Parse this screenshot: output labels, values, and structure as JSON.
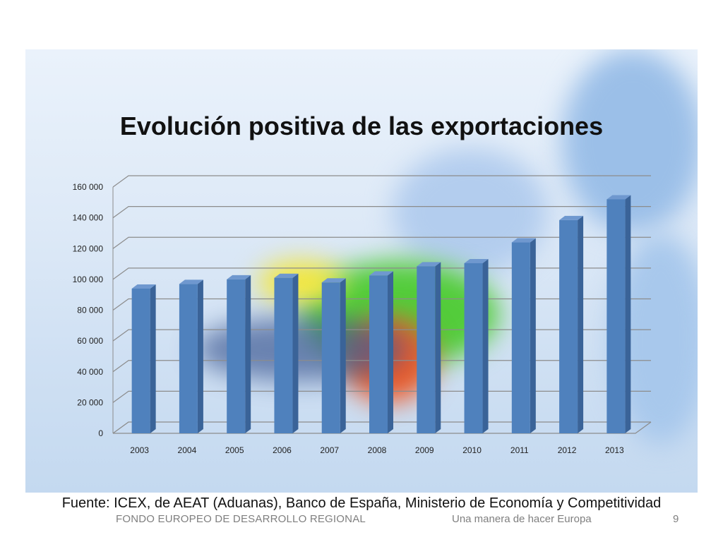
{
  "slide": {
    "source_text": "Fuente: ICEX, de AEAT (Aduanas), Banco de España, Ministerio de Economía y Competitividad",
    "footer_left": "FONDO EUROPEO DE DESARROLLO REGIONAL",
    "footer_middle": "Una manera de hacer Europa",
    "page_number": "9"
  },
  "colors": {
    "bar_front": "#4f81bd",
    "bar_side": "#3a6398",
    "bar_top": "#6f98cf",
    "grid": "#8c8c8c"
  },
  "chart_data": {
    "type": "bar",
    "title": "Evolución positiva de las exportaciones",
    "categories": [
      "2003",
      "2004",
      "2005",
      "2006",
      "2007",
      "2008",
      "2009",
      "2010",
      "2011",
      "2012",
      "2013"
    ],
    "values": [
      94000,
      97000,
      100000,
      101000,
      98000,
      102500,
      108500,
      110500,
      124000,
      138500,
      152000
    ],
    "y_ticks": [
      "0",
      "20 000",
      "40 000",
      "60 000",
      "80 000",
      "100 000",
      "120 000",
      "140 000",
      "160 000"
    ],
    "ylim": [
      0,
      160000
    ],
    "grid": true,
    "legend": "none"
  }
}
